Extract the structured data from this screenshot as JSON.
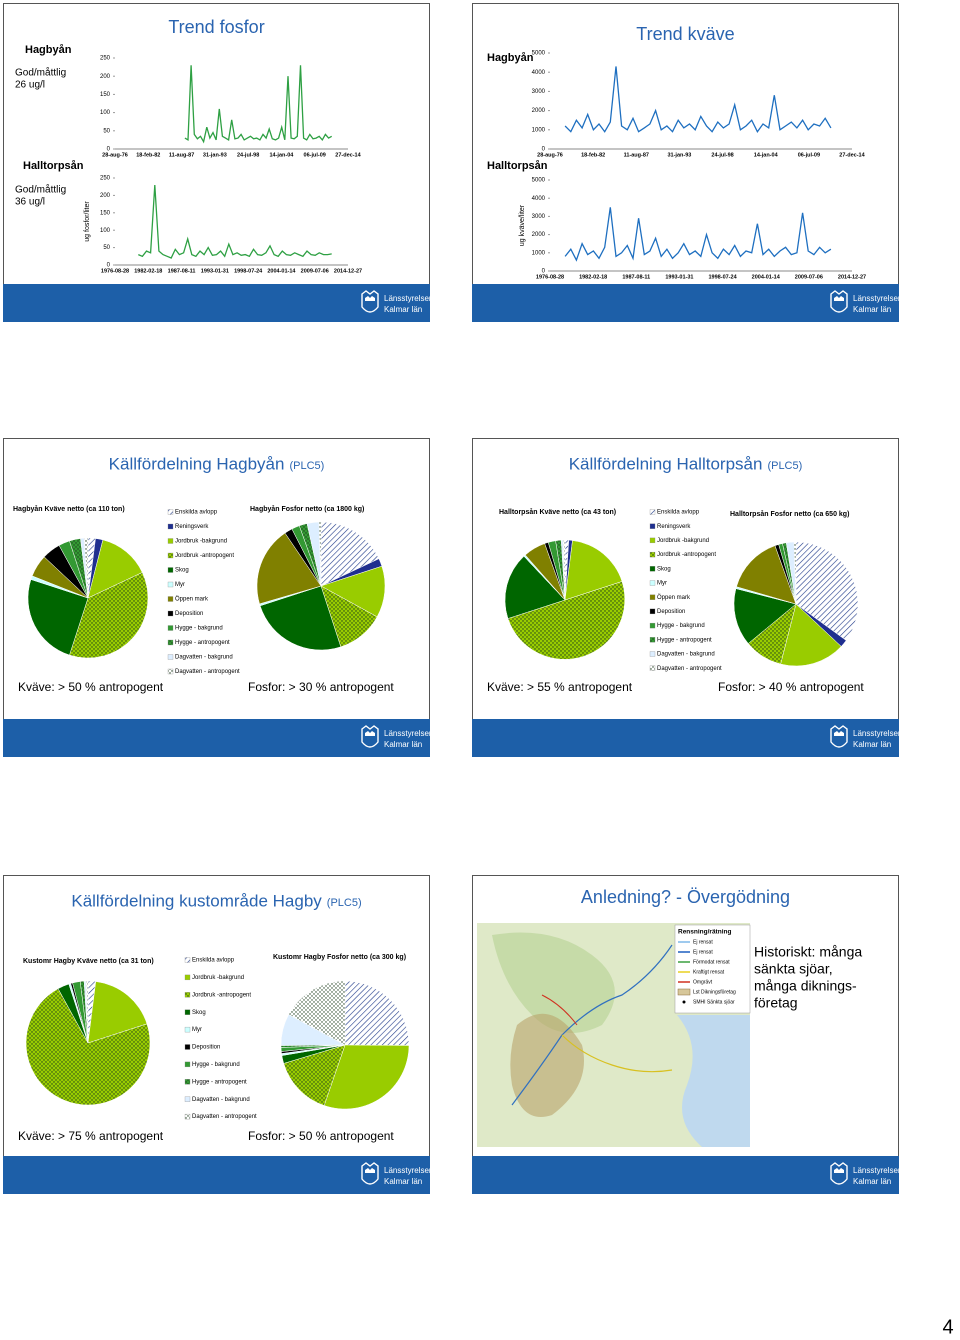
{
  "slides": [
    {
      "title": "Trend fosfor",
      "panels": [
        {
          "label": "Hagbyån",
          "note": [
            "God/måttlig",
            "26 ug/l"
          ],
          "chart": {
            "type": "line",
            "color": "#2ea043",
            "ylim": [
              0,
              250
            ],
            "yticks": [
              0,
              50,
              100,
              150,
              200,
              250
            ],
            "xticks": [
              "28-aug-76",
              "18-feb-82",
              "11-aug-87",
              "31-jan-93",
              "24-jul-98",
              "14-jan-04",
              "06-jul-09",
              "27-dec-14"
            ],
            "values": [
              30,
              25,
              230,
              40,
              28,
              35,
              20,
              60,
              30,
              45,
              25,
              110,
              35,
              30,
              25,
              80,
              28,
              30,
              40,
              25,
              30,
              35,
              28,
              30,
              25,
              40,
              30,
              55,
              28,
              25,
              30,
              60,
              25,
              200,
              30,
              28,
              35,
              230,
              30,
              25,
              40,
              28,
              30,
              35,
              25,
              40,
              30,
              35
            ]
          }
        },
        {
          "label": "Halltorpsån",
          "note": [
            "God/måttlig",
            "36 ug/l"
          ],
          "chart": {
            "type": "line",
            "color": "#2ea043",
            "ylabel": "ug fosfor/liter",
            "ylim": [
              0,
              250
            ],
            "yticks": [
              0,
              50,
              100,
              150,
              200,
              250
            ],
            "xticks": [
              "1976-08-28",
              "1982-02-18",
              "1987-08-11",
              "1993-01-31",
              "1998-07-24",
              "2004-01-14",
              "2009-07-06",
              "2014-12-27"
            ],
            "values": [
              30,
              25,
              40,
              35,
              230,
              40,
              30,
              25,
              20,
              45,
              30,
              35,
              75,
              30,
              25,
              40,
              30,
              50,
              28,
              30,
              40,
              25,
              60,
              30,
              35,
              28,
              30,
              25,
              45,
              30,
              28,
              35,
              55,
              30,
              25,
              40,
              30,
              28,
              35,
              30,
              25,
              40,
              30,
              28,
              35,
              30,
              30,
              32
            ]
          }
        }
      ]
    },
    {
      "title": "Trend kväve",
      "panels": [
        {
          "label": "Hagbyån",
          "chart": {
            "type": "line",
            "color": "#1e6fc0",
            "ylim": [
              0,
              5000
            ],
            "yticks": [
              0,
              1000,
              2000,
              3000,
              4000,
              5000
            ],
            "xticks": [
              "28-aug-76",
              "18-feb-82",
              "11-aug-87",
              "31-jan-93",
              "24-jul-98",
              "14-jan-04",
              "06-jul-09",
              "27-dec-14"
            ],
            "values": [
              1200,
              900,
              1500,
              1100,
              1800,
              1000,
              1300,
              900,
              1400,
              4300,
              1200,
              1000,
              1600,
              900,
              1100,
              1300,
              2000,
              1000,
              1200,
              900,
              1500,
              1100,
              1300,
              1000,
              1700,
              1200,
              900,
              1400,
              1100,
              1300,
              2300,
              1000,
              1200,
              1500,
              900,
              1300,
              1100,
              2800,
              1000,
              1200,
              1400,
              1100,
              1500,
              1000,
              1300,
              1200,
              1600,
              1100
            ]
          }
        },
        {
          "label": "Halltorpsån",
          "chart": {
            "type": "line",
            "color": "#1e6fc0",
            "ylabel": "ug kväve/liter",
            "ylim": [
              0,
              5000
            ],
            "yticks": [
              0,
              1000,
              2000,
              3000,
              4000,
              5000
            ],
            "xticks": [
              "1976-08-28",
              "1982-02-18",
              "1987-08-11",
              "1993-01-31",
              "1998-07-24",
              "2004-01-14",
              "2009-07-06",
              "2014-12-27"
            ],
            "values": [
              800,
              1200,
              600,
              1500,
              900,
              1100,
              700,
              1300,
              3500,
              800,
              1000,
              1400,
              700,
              2900,
              900,
              1100,
              1800,
              800,
              1200,
              700,
              1000,
              1500,
              900,
              1100,
              800,
              2000,
              1000,
              700,
              1200,
              900,
              1400,
              800,
              1100,
              1000,
              2600,
              900,
              1200,
              800,
              1100,
              1300,
              900,
              1000,
              3200,
              1100,
              900,
              1300,
              1000,
              1200
            ]
          }
        }
      ]
    },
    {
      "title": "Källfördelning Hagbyån",
      "title_suffix": "(PLC5)",
      "legend": [
        {
          "name": "Enskilda avlopp",
          "color": "#1f3a8a",
          "pattern": "hatch"
        },
        {
          "name": "Reningsverk",
          "color": "#1f2f8f"
        },
        {
          "name": "Jordbruk -bakgrund",
          "color": "#99cc00"
        },
        {
          "name": "Jordbruk -antropogent",
          "color": "#99cc00",
          "pattern": "dots"
        },
        {
          "name": "Skog",
          "color": "#006600"
        },
        {
          "name": "Myr",
          "color": "#ccffff"
        },
        {
          "name": "Öppen mark",
          "color": "#808000"
        },
        {
          "name": "Deposition",
          "color": "#000000"
        },
        {
          "name": "Hygge - bakgrund",
          "color": "#339933"
        },
        {
          "name": "Hygge - antropogent",
          "color": "#339933",
          "pattern": "dots"
        },
        {
          "name": "Dagvatten - bakgrund",
          "color": "#ddeeff"
        },
        {
          "name": "Dagvatten - antropogent",
          "color": "#ffffff",
          "pattern": "dots"
        }
      ],
      "pies": [
        {
          "type": "pie",
          "title": "Hagbyån Kväve netto (ca 110 ton)",
          "values": [
            2,
            2,
            14,
            37,
            25,
            1,
            6,
            5,
            3,
            3,
            1,
            1
          ]
        },
        {
          "type": "pie",
          "title": "Hagbyån Fosfor netto (ca 1800 kg)",
          "values": [
            18,
            2,
            13,
            12,
            25,
            0.5,
            20,
            2,
            2,
            2,
            3,
            0.5
          ]
        }
      ],
      "conclusions": [
        "Kväve: > 50 % antropogent",
        "Fosfor: > 30 % antropogent"
      ]
    },
    {
      "title": "Källfördelning Halltorpsån",
      "title_suffix": "(PLC5)",
      "legend": [
        {
          "name": "Enskilda avlopp",
          "color": "#1f3a8a",
          "pattern": "hatch"
        },
        {
          "name": "Reningsverk",
          "color": "#1f2f8f"
        },
        {
          "name": "Jordbruk -bakgrund",
          "color": "#99cc00"
        },
        {
          "name": "Jordbruk -antropogent",
          "color": "#99cc00",
          "pattern": "dots"
        },
        {
          "name": "Skog",
          "color": "#006600"
        },
        {
          "name": "Myr",
          "color": "#ccffff"
        },
        {
          "name": "Öppen mark",
          "color": "#808000"
        },
        {
          "name": "Deposition",
          "color": "#000000"
        },
        {
          "name": "Hygge - bakgrund",
          "color": "#339933"
        },
        {
          "name": "Hygge - antropogent",
          "color": "#339933",
          "pattern": "dots"
        },
        {
          "name": "Dagvatten - bakgrund",
          "color": "#ddeeff"
        },
        {
          "name": "Dagvatten - antropogent",
          "color": "#ffffff",
          "pattern": "dots"
        }
      ],
      "pies": [
        {
          "type": "pie",
          "title": "Halltorpsån Kväve netto (ca 43 ton)",
          "values": [
            1,
            1,
            18,
            50,
            18,
            0.5,
            6,
            1,
            2,
            1.5,
            0.5,
            0.5
          ]
        },
        {
          "type": "pie",
          "title": "Halltorpsån Fosfor netto (ca 650 kg)",
          "values": [
            35,
            2,
            17,
            10,
            15,
            0.5,
            15,
            1,
            1,
            1,
            2,
            0.5
          ]
        }
      ],
      "conclusions": [
        "Kväve: > 55 % antropogent",
        "Fosfor: > 40 % antropogent"
      ]
    },
    {
      "title": "Källfördelning kustområde Hagby",
      "title_suffix": "(PLC5)",
      "legend": [
        {
          "name": "Enskilda avlopp",
          "color": "#1f3a8a",
          "pattern": "hatch"
        },
        {
          "name": "Jordbruk -bakgrund",
          "color": "#99cc00"
        },
        {
          "name": "Jordbruk -antropogent",
          "color": "#99cc00",
          "pattern": "dots"
        },
        {
          "name": "Skog",
          "color": "#006600"
        },
        {
          "name": "Myr",
          "color": "#ccffff"
        },
        {
          "name": "Deposition",
          "color": "#000000"
        },
        {
          "name": "Hygge - bakgrund",
          "color": "#339933"
        },
        {
          "name": "Hygge - antropogent",
          "color": "#339933",
          "pattern": "dots"
        },
        {
          "name": "Dagvatten - bakgrund",
          "color": "#ddeeff"
        },
        {
          "name": "Dagvatten - antropogent",
          "color": "#ffffff",
          "pattern": "dots"
        }
      ],
      "pies": [
        {
          "type": "pie",
          "title": "Kustomr Hagby Kväve netto (ca 31  ton)",
          "values": [
            2,
            18,
            72,
            3,
            0.5,
            0.5,
            2,
            1,
            0.5,
            0.5
          ]
        },
        {
          "type": "pie",
          "title": "Kustomr Hagby Fosfor netto (ca 300  kg)",
          "values": [
            25,
            30,
            15,
            2,
            0.5,
            0.5,
            1,
            0.5,
            8,
            17
          ]
        }
      ],
      "conclusions": [
        "Kväve: > 75 % antropogent",
        "Fosfor: > 50 % antropogent"
      ]
    },
    {
      "title": "Anledning? - Övergödning",
      "map_legend": {
        "title": "Rensning/rätning",
        "items": [
          "Ej rensat",
          "Ej rensat",
          "Förmodat rensat",
          "Kraftigt rensat",
          "Omgrävt",
          "Lst Dikningsföretag",
          "SMHI Sänkta sjöar"
        ]
      },
      "text": [
        "Historiskt: många",
        "sänkta sjöar,",
        "många diknings-",
        "företag"
      ]
    }
  ],
  "logo": [
    "Länsstyrelsen",
    "Kalmar län"
  ],
  "page_number": 4
}
